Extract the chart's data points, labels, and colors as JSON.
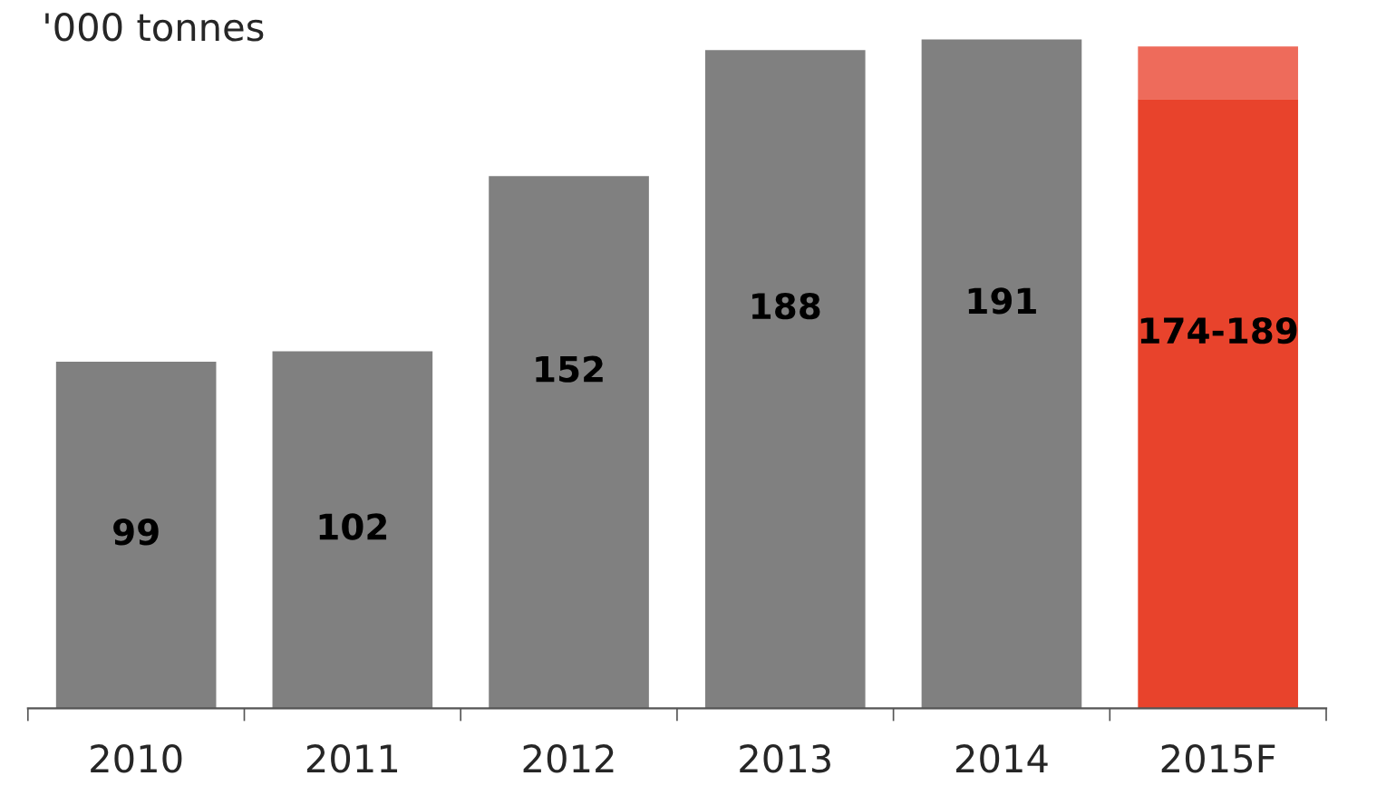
{
  "chart_data": {
    "type": "bar",
    "stacked": true,
    "ylabel": "'000 tonnes",
    "categories": [
      "2010",
      "2011",
      "2012",
      "2013",
      "2014",
      "2015F"
    ],
    "series": [
      {
        "colors": [
          "#808080",
          "#808080",
          "#808080",
          "#808080",
          "#808080",
          "#e8432c"
        ],
        "values": [
          99,
          102,
          152,
          188,
          191,
          174
        ],
        "value_labels": [
          "99",
          "102",
          "152",
          "188",
          "191",
          "174-189"
        ]
      },
      {
        "color": "#ee6b5b",
        "values": [
          null,
          null,
          null,
          null,
          null,
          15
        ]
      }
    ],
    "grid": false,
    "legend": false
  }
}
